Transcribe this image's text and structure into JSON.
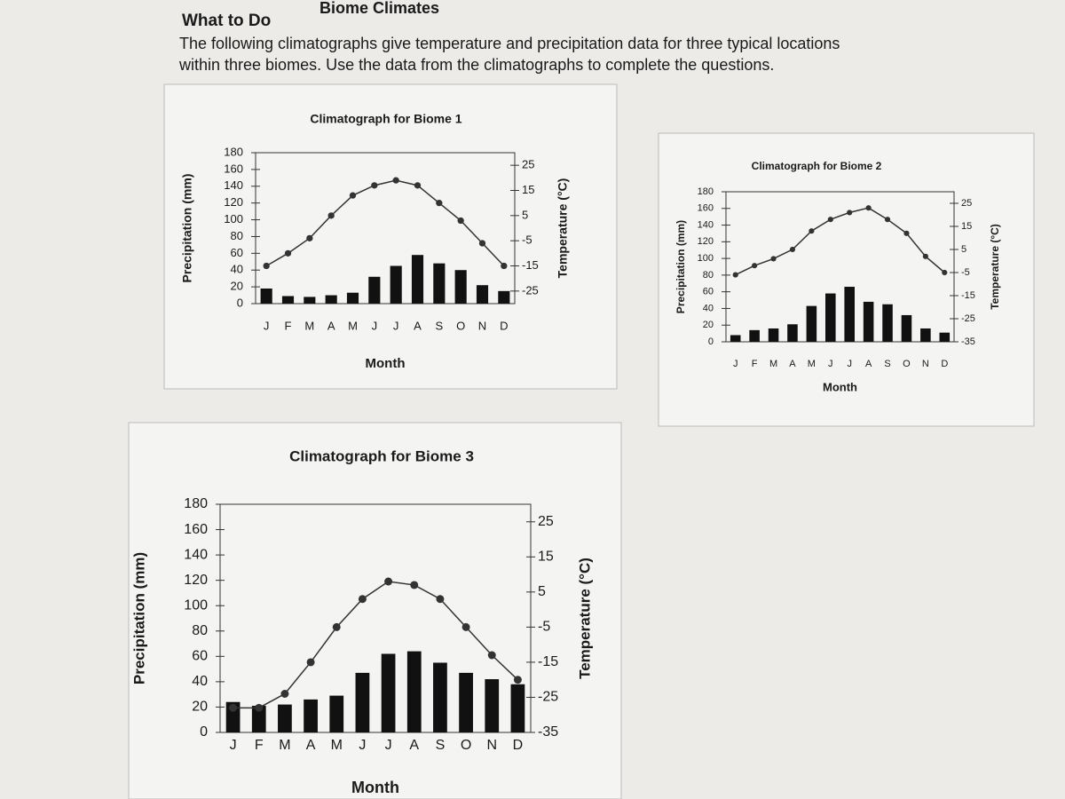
{
  "header": {
    "title": "Biome Climates",
    "subtitle": "What to Do",
    "instructions": [
      "The following climatographs give temperature and precipitation data for three typical locations",
      "within three biomes. Use the data from the climatographs to complete the questions."
    ]
  },
  "chart_data": [
    {
      "type": "combo",
      "title": "Climatograph for Biome 1",
      "x_label": "Month",
      "y_label": "Precipitation (mm)",
      "y2_label": "Temperature (°C)",
      "categories": [
        "J",
        "F",
        "M",
        "A",
        "M",
        "J",
        "J",
        "A",
        "S",
        "O",
        "N",
        "D"
      ],
      "series": [
        {
          "type": "bar",
          "color": "#111111",
          "values": [
            18,
            9,
            8,
            10,
            13,
            32,
            45,
            58,
            48,
            40,
            22,
            15
          ]
        },
        {
          "type": "line",
          "color": "#333333",
          "axis": "y2",
          "values": [
            -15,
            -10,
            -4,
            5,
            13,
            17,
            19,
            17,
            10,
            3,
            -6,
            -15
          ]
        }
      ],
      "ylim": [
        0,
        180
      ],
      "yticks": [
        0,
        20,
        40,
        60,
        80,
        100,
        120,
        140,
        160,
        180
      ],
      "y2lim": [
        -30,
        30
      ],
      "y2ticks": [
        25,
        15,
        5,
        -5,
        -15,
        -25
      ]
    },
    {
      "type": "combo",
      "title": "Climatograph for Biome 2",
      "x_label": "Month",
      "y_label": "Precipitation (mm)",
      "y2_label": "Temperature (°C)",
      "categories": [
        "J",
        "F",
        "M",
        "A",
        "M",
        "J",
        "J",
        "A",
        "S",
        "O",
        "N",
        "D"
      ],
      "series": [
        {
          "type": "bar",
          "color": "#111111",
          "values": [
            8,
            14,
            16,
            21,
            43,
            58,
            66,
            48,
            45,
            32,
            16,
            11
          ]
        },
        {
          "type": "line",
          "color": "#333333",
          "axis": "y2",
          "values": [
            -6,
            -2,
            1,
            5,
            13,
            18,
            21,
            23,
            18,
            12,
            2,
            -5
          ]
        }
      ],
      "ylim": [
        0,
        180
      ],
      "yticks": [
        0,
        20,
        40,
        60,
        80,
        100,
        120,
        140,
        160,
        180
      ],
      "y2lim": [
        -35,
        30
      ],
      "y2ticks": [
        25,
        15,
        5,
        -5,
        -15,
        -25,
        -35
      ]
    },
    {
      "type": "combo",
      "title": "Climatograph for Biome 3",
      "x_label": "Month",
      "y_label": "Precipitation (mm)",
      "y2_label": "Temperature (°C)",
      "categories": [
        "J",
        "F",
        "M",
        "A",
        "M",
        "J",
        "J",
        "A",
        "S",
        "O",
        "N",
        "D"
      ],
      "series": [
        {
          "type": "bar",
          "color": "#111111",
          "values": [
            24,
            21,
            22,
            26,
            29,
            47,
            62,
            64,
            55,
            47,
            42,
            38
          ]
        },
        {
          "type": "line",
          "color": "#333333",
          "axis": "y2",
          "values": [
            -28,
            -28,
            -24,
            -15,
            -5,
            3,
            8,
            7,
            3,
            -5,
            -13,
            -20
          ]
        }
      ],
      "ylim": [
        0,
        180
      ],
      "yticks": [
        0,
        20,
        40,
        60,
        80,
        100,
        120,
        140,
        160,
        180
      ],
      "y2lim": [
        -35,
        30
      ],
      "y2ticks": [
        25,
        15,
        5,
        -5,
        -15,
        -25,
        -35
      ]
    }
  ]
}
